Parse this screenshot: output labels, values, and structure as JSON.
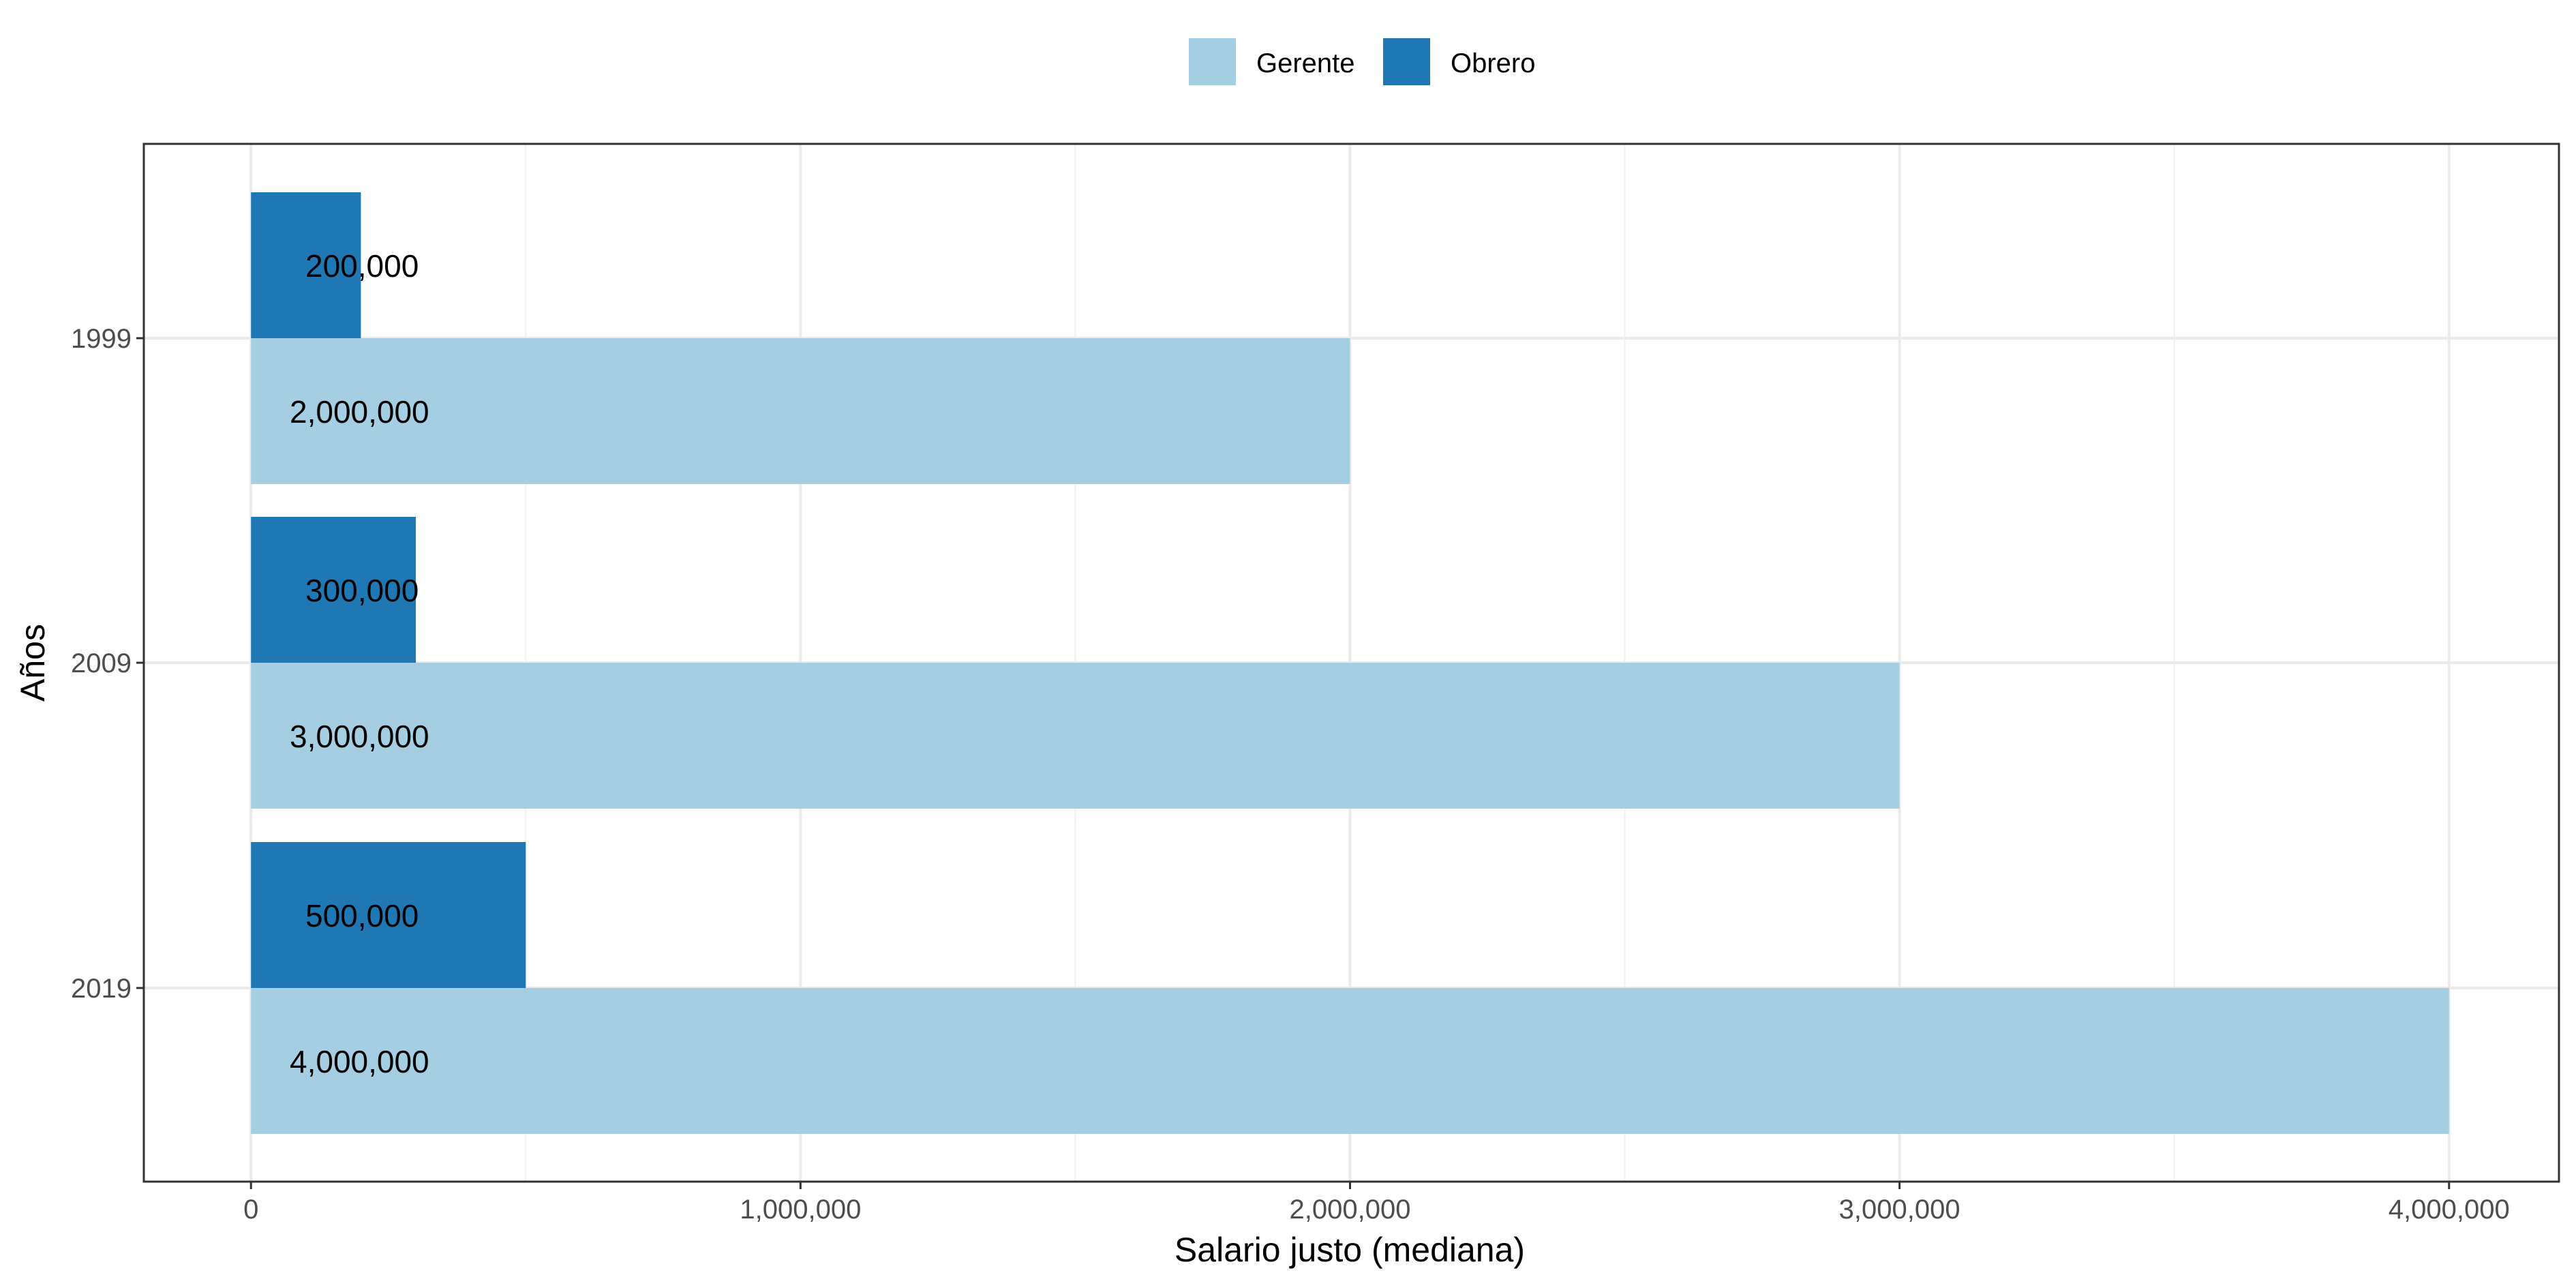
{
  "chart_data": {
    "type": "bar",
    "orientation": "horizontal",
    "title": "",
    "xlabel": "Salario justo (mediana)",
    "ylabel": "Años",
    "categories": [
      "1999",
      "2009",
      "2019"
    ],
    "series": [
      {
        "name": "Gerente",
        "color": "#a6cee3",
        "values": [
          2000000,
          3000000,
          4000000
        ],
        "labels": [
          "2,000,000",
          "3,000,000",
          "4,000,000"
        ]
      },
      {
        "name": "Obrero",
        "color": "#1f78b4",
        "values": [
          200000,
          300000,
          500000
        ],
        "labels": [
          "200,000",
          "300,000",
          "500,000"
        ]
      }
    ],
    "xlim": [
      -195000,
      4200000
    ],
    "xticks": [
      0,
      1000000,
      2000000,
      3000000,
      4000000
    ],
    "xtick_labels": [
      "0",
      "1,000,000",
      "2,000,000",
      "3,000,000",
      "4,000,000"
    ],
    "grid": true,
    "legend_position": "top"
  }
}
